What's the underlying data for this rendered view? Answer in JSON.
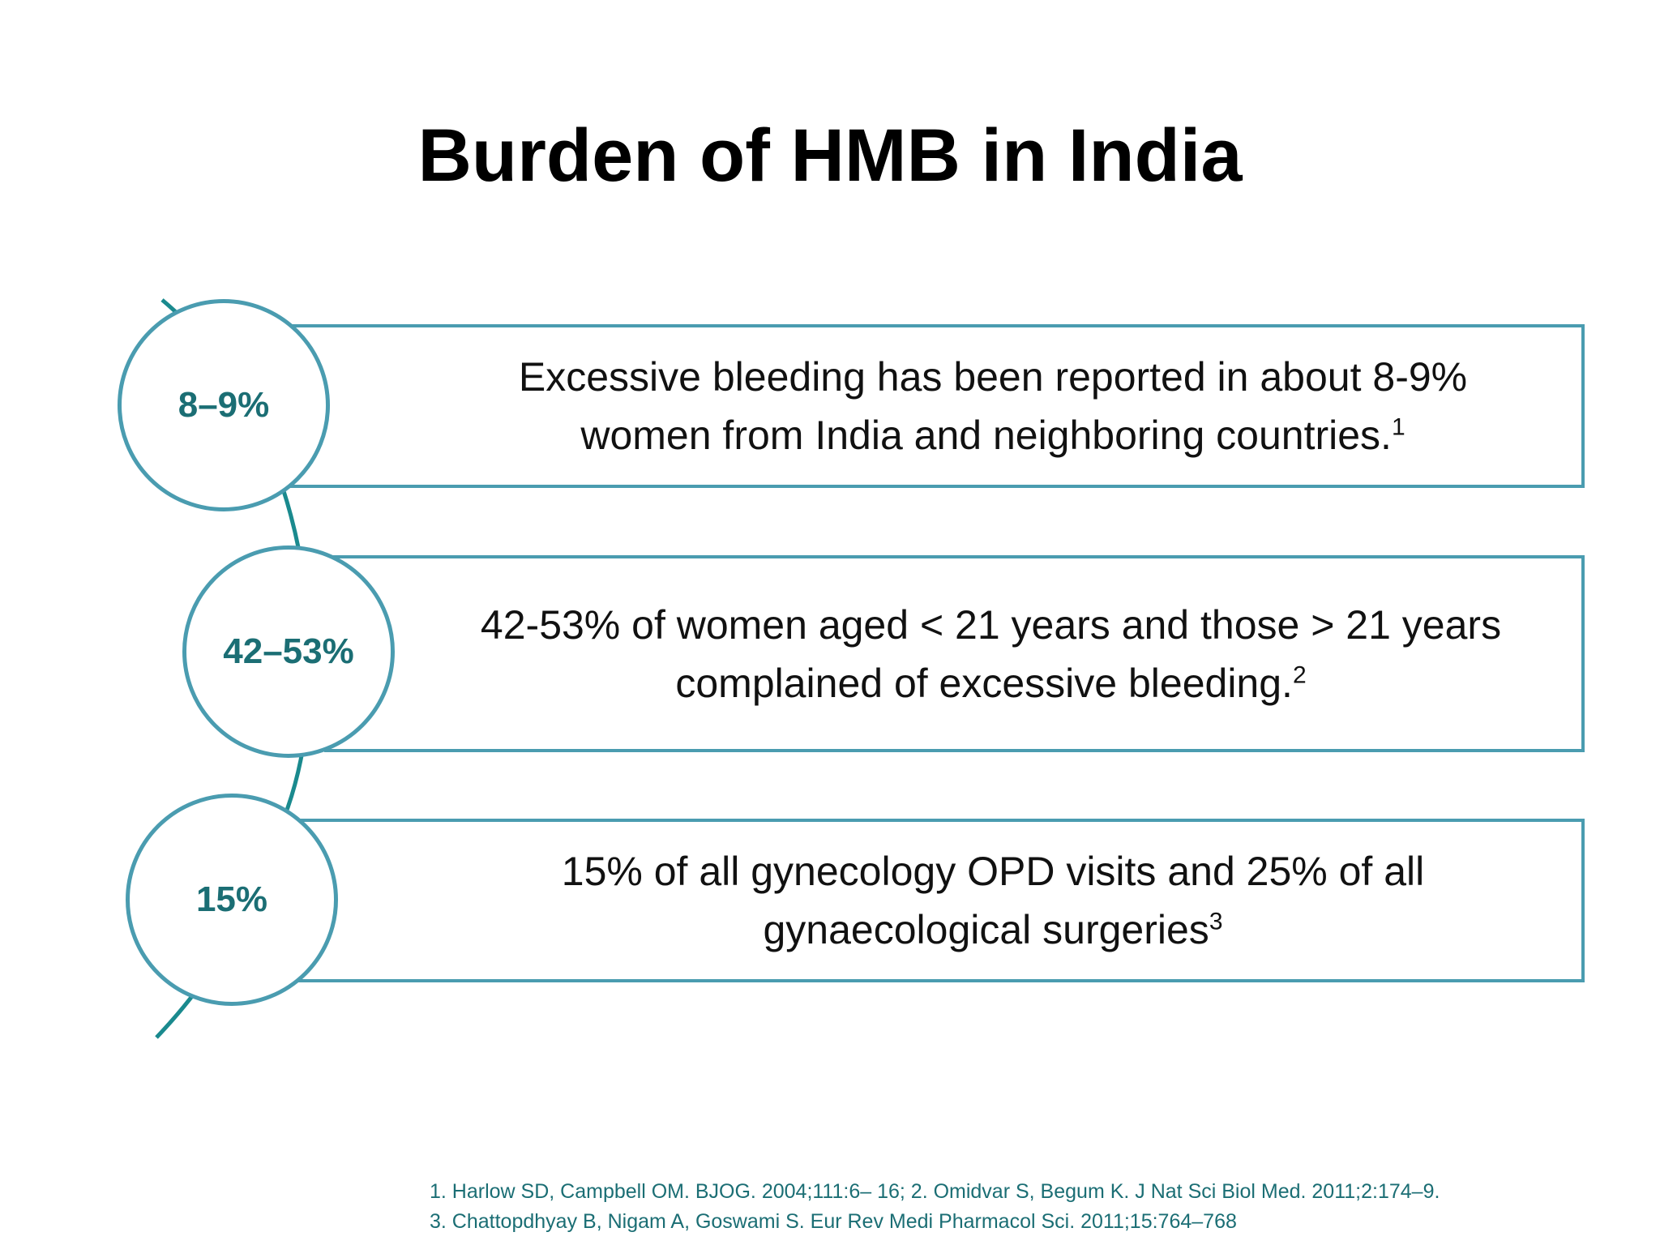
{
  "slide": {
    "title": "Burden of HMB in India",
    "items": [
      {
        "stat": "8–9%",
        "text": "Excessive bleeding has been reported in about 8-9%",
        "text2": "women from India and neighboring countries.",
        "ref": "1"
      },
      {
        "stat": "42–53%",
        "text": "42-53% of women aged < 21 years and those > 21 years",
        "text2": "complained of excessive bleeding.",
        "ref": "2"
      },
      {
        "stat": "15%",
        "text": "15% of all gynecology OPD visits and 25% of all",
        "text2": "gynaecological surgeries",
        "ref": "3"
      }
    ],
    "references": [
      "1. Harlow SD, Campbell OM. BJOG. 2004;111:6– 16; 2. Omidvar S, Begum K. J Nat Sci Biol Med. 2011;2:174–9.",
      "3. Chattopdhyay B, Nigam A, Goswami S. Eur Rev Medi Pharmacol Sci. 2011;15:764–768"
    ],
    "colors": {
      "accent": "#4a9cb0",
      "arc": "#1a8a8e",
      "stat_text": "#1b6e74",
      "reference_text": "#1b6e74"
    }
  }
}
